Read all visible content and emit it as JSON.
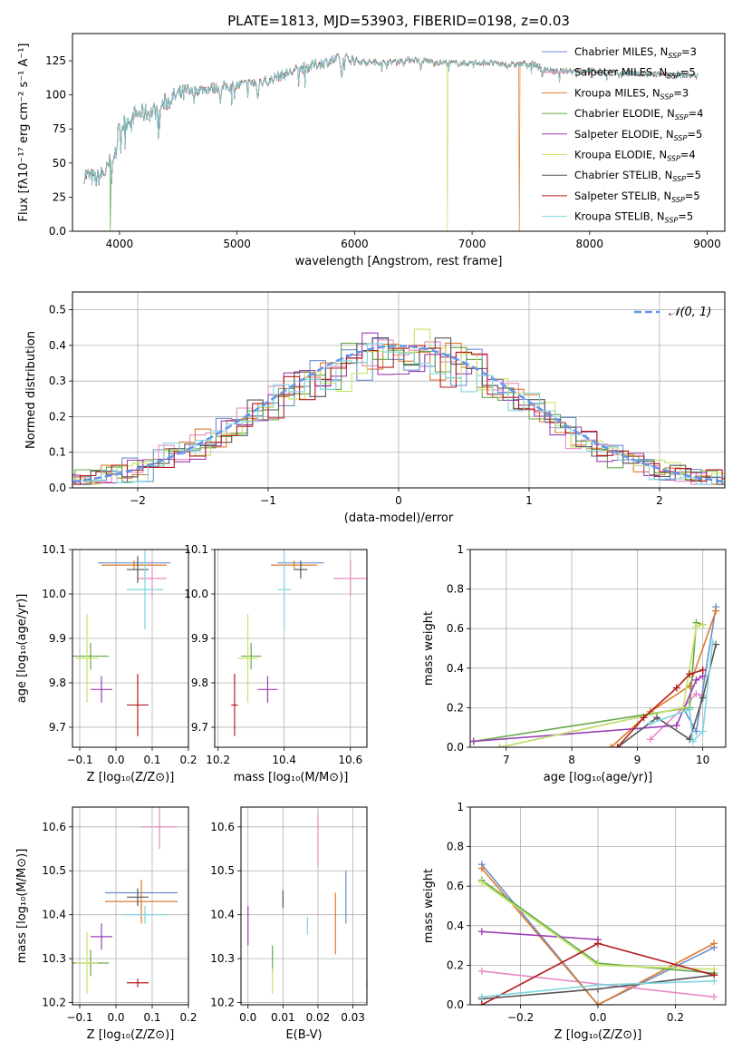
{
  "figure": {
    "title": "PLATE=1813, MJD=53903, FIBERID=0198, z=0.03"
  },
  "series_colors": [
    "#6a8fcf",
    "#e78ac3",
    "#de7a2c",
    "#63a84a",
    "#9b3fb5",
    "#c8e26a",
    "#555555",
    "#b51c1c",
    "#7fd6e0"
  ],
  "chart_data": [
    {
      "id": "spectrum",
      "type": "line",
      "title": "PLATE=1813, MJD=53903, FIBERID=0198, z=0.03",
      "xlabel": "wavelength [Angstrom, rest frame]",
      "ylabel": "Flux [fλ10⁻¹⁷ erg cm⁻² s⁻¹ A⁻¹]",
      "xlim": [
        3600,
        9150
      ],
      "ylim": [
        0,
        145
      ],
      "xticks": [
        4000,
        5000,
        6000,
        7000,
        8000,
        9000
      ],
      "yticks": [
        0,
        25,
        50,
        75,
        100,
        125
      ],
      "grid": false,
      "legend_position": "top-right",
      "legend": [
        "Chabrier MILES, NSSP=3",
        "Salpeter MILES, NSSP=5",
        "Kroupa MILES, NSSP=3",
        "Chabrier ELODIE, NSSP=4",
        "Salpeter ELODIE, NSSP=5",
        "Kroupa ELODIE, NSSP=4",
        "Chabrier STELIB, NSSP=5",
        "Salpeter STELIB, NSSP=5",
        "Kroupa STELIB, NSSP=5"
      ],
      "continuum": [
        [
          3700,
          42
        ],
        [
          3800,
          38
        ],
        [
          3900,
          45
        ],
        [
          4000,
          75
        ],
        [
          4100,
          85
        ],
        [
          4300,
          88
        ],
        [
          4400,
          95
        ],
        [
          4500,
          100
        ],
        [
          4700,
          104
        ],
        [
          4900,
          106
        ],
        [
          5100,
          108
        ],
        [
          5300,
          112
        ],
        [
          5500,
          118
        ],
        [
          5700,
          123
        ],
        [
          5900,
          127
        ],
        [
          6100,
          124
        ],
        [
          6300,
          124
        ],
        [
          6500,
          126
        ],
        [
          6700,
          124
        ],
        [
          6900,
          123
        ],
        [
          7100,
          124
        ],
        [
          7300,
          122
        ],
        [
          7500,
          123
        ],
        [
          7700,
          117
        ],
        [
          7900,
          118
        ],
        [
          8100,
          117
        ],
        [
          8300,
          116
        ],
        [
          8500,
          115
        ],
        [
          8700,
          115
        ],
        [
          8900,
          114
        ]
      ],
      "dropouts": [
        {
          "x": 3920,
          "series": 3
        },
        {
          "x": 6790,
          "series": 5
        },
        {
          "x": 7400,
          "series": 2
        }
      ]
    },
    {
      "id": "residuals",
      "type": "step",
      "xlabel": "(data-model)/error",
      "ylabel": "Normed distribution",
      "xlim": [
        -2.5,
        2.5
      ],
      "ylim": [
        0,
        0.55
      ],
      "xticks": [
        -2,
        -1,
        0,
        1,
        2
      ],
      "yticks": [
        0.0,
        0.1,
        0.2,
        0.3,
        0.4,
        0.5
      ],
      "grid": true,
      "legend_position": "top-right",
      "reference_curve": {
        "label": "𝒩(0, 1)",
        "mean": 0,
        "sigma": 1
      }
    },
    {
      "id": "age-vs-Z",
      "type": "errorbar",
      "xlabel": "Z [log₁₀(Z/Z⊙)]",
      "ylabel": "age  [log₁₀(age/yr)]",
      "xlim": [
        -0.12,
        0.2
      ],
      "ylim": [
        9.655,
        10.1
      ],
      "xticks": [
        -0.1,
        0.0,
        0.1,
        0.2
      ],
      "yticks": [
        9.7,
        9.8,
        9.9,
        10.0,
        10.1
      ],
      "grid": true,
      "points": [
        {
          "x": 0.05,
          "y": 10.07,
          "xerr": 0.1,
          "yerr": 0.0,
          "c": 0
        },
        {
          "x": 0.1,
          "y": 10.035,
          "xerr": 0.04,
          "yerr": 0.04,
          "c": 1
        },
        {
          "x": 0.05,
          "y": 10.065,
          "xerr": 0.09,
          "yerr": 0.01,
          "c": 2
        },
        {
          "x": -0.07,
          "y": 9.86,
          "xerr": 0.05,
          "yerr": 0.03,
          "c": 3
        },
        {
          "x": -0.04,
          "y": 9.785,
          "xerr": 0.03,
          "yerr": 0.03,
          "c": 4
        },
        {
          "x": -0.08,
          "y": 9.855,
          "xerr": 0.03,
          "yerr": 0.1,
          "c": 5
        },
        {
          "x": 0.06,
          "y": 10.055,
          "xerr": 0.03,
          "yerr": 0.03,
          "c": 6
        },
        {
          "x": 0.06,
          "y": 9.75,
          "xerr": 0.03,
          "yerr": 0.07,
          "c": 7
        },
        {
          "x": 0.08,
          "y": 10.01,
          "xerr": 0.05,
          "yerr": 0.09,
          "c": 8
        }
      ]
    },
    {
      "id": "age-vs-mass",
      "type": "errorbar",
      "xlabel": "mass [log₁₀(M/M⊙)]",
      "ylabel": "",
      "xlim": [
        10.19,
        10.65
      ],
      "ylim": [
        9.655,
        10.1
      ],
      "xticks": [
        10.2,
        10.4,
        10.6
      ],
      "yticks": [
        9.7,
        9.8,
        9.9,
        10.0,
        10.1
      ],
      "grid": true,
      "points": [
        {
          "x": 10.45,
          "y": 10.07,
          "xerr": 0.07,
          "yerr": 0.0,
          "c": 0
        },
        {
          "x": 10.6,
          "y": 10.035,
          "xerr": 0.05,
          "yerr": 0.04,
          "c": 1
        },
        {
          "x": 10.43,
          "y": 10.065,
          "xerr": 0.07,
          "yerr": 0.01,
          "c": 2
        },
        {
          "x": 10.3,
          "y": 9.86,
          "xerr": 0.03,
          "yerr": 0.03,
          "c": 3
        },
        {
          "x": 10.35,
          "y": 9.785,
          "xerr": 0.03,
          "yerr": 0.03,
          "c": 4
        },
        {
          "x": 10.29,
          "y": 9.855,
          "xerr": 0.03,
          "yerr": 0.1,
          "c": 5
        },
        {
          "x": 10.45,
          "y": 10.055,
          "xerr": 0.02,
          "yerr": 0.02,
          "c": 6
        },
        {
          "x": 10.25,
          "y": 9.75,
          "xerr": 0.01,
          "yerr": 0.07,
          "c": 7
        },
        {
          "x": 10.4,
          "y": 10.01,
          "xerr": 0.02,
          "yerr": 0.09,
          "c": 8
        }
      ]
    },
    {
      "id": "mass-vs-Z",
      "type": "errorbar",
      "xlabel": "Z [log₁₀(Z/Z⊙)]",
      "ylabel": "mass [log₁₀(M/M⊙)]",
      "xlim": [
        -0.12,
        0.2
      ],
      "ylim": [
        10.195,
        10.645
      ],
      "xticks": [
        -0.1,
        0.0,
        0.1,
        0.2
      ],
      "yticks": [
        10.2,
        10.3,
        10.4,
        10.5,
        10.6
      ],
      "grid": true,
      "points": [
        {
          "x": 0.07,
          "y": 10.45,
          "xerr": 0.1,
          "yerr": 0.0,
          "c": 0
        },
        {
          "x": 0.12,
          "y": 10.6,
          "xerr": 0.05,
          "yerr": 0.05,
          "c": 1
        },
        {
          "x": 0.07,
          "y": 10.43,
          "xerr": 0.1,
          "yerr": 0.05,
          "c": 2
        },
        {
          "x": -0.07,
          "y": 10.29,
          "xerr": 0.05,
          "yerr": 0.03,
          "c": 3
        },
        {
          "x": -0.04,
          "y": 10.35,
          "xerr": 0.03,
          "yerr": 0.03,
          "c": 4
        },
        {
          "x": -0.08,
          "y": 10.29,
          "xerr": 0.03,
          "yerr": 0.07,
          "c": 5
        },
        {
          "x": 0.06,
          "y": 10.44,
          "xerr": 0.03,
          "yerr": 0.02,
          "c": 6
        },
        {
          "x": 0.06,
          "y": 10.245,
          "xerr": 0.03,
          "yerr": 0.01,
          "c": 7
        },
        {
          "x": 0.08,
          "y": 10.4,
          "xerr": 0.06,
          "yerr": 0.02,
          "c": 8
        }
      ]
    },
    {
      "id": "mass-vs-EBV",
      "type": "errorbar",
      "xlabel": "E(B-V)",
      "ylabel": "",
      "xlim": [
        -0.002,
        0.034
      ],
      "ylim": [
        10.195,
        10.645
      ],
      "xticks": [
        0.0,
        0.01,
        0.02,
        0.03
      ],
      "yticks": [
        10.2,
        10.3,
        10.4,
        10.5,
        10.6
      ],
      "grid": true,
      "points": [
        {
          "x": 0.028,
          "y": 10.44,
          "xerr": 0,
          "yerr": 0.06,
          "c": 0
        },
        {
          "x": 0.02,
          "y": 10.57,
          "xerr": 0,
          "yerr": 0.06,
          "c": 1
        },
        {
          "x": 0.025,
          "y": 10.38,
          "xerr": 0,
          "yerr": 0.07,
          "c": 2
        },
        {
          "x": 0.007,
          "y": 10.3,
          "xerr": 0,
          "yerr": 0.03,
          "c": 3
        },
        {
          "x": 0.0,
          "y": 10.375,
          "xerr": 0,
          "yerr": 0.045,
          "c": 4
        },
        {
          "x": 0.007,
          "y": 10.25,
          "xerr": 0,
          "yerr": 0.03,
          "c": 5
        },
        {
          "x": 0.01,
          "y": 10.435,
          "xerr": 0,
          "yerr": 0.02,
          "c": 6
        },
        {
          "x": 0.034,
          "y": 10.245,
          "xerr": 0,
          "yerr": 0.01,
          "c": 7
        },
        {
          "x": 0.017,
          "y": 10.375,
          "xerr": 0,
          "yerr": 0.02,
          "c": 8
        }
      ]
    },
    {
      "id": "weight-vs-age",
      "type": "line",
      "xlabel": "age  [log₁₀(age/yr)]",
      "ylabel": "mass weight",
      "xlim": [
        6.45,
        10.35
      ],
      "ylim": [
        0,
        1
      ],
      "xticks": [
        7,
        8,
        9,
        10
      ],
      "yticks": [
        0.0,
        0.2,
        0.4,
        0.6,
        0.8,
        1.0
      ],
      "grid": true,
      "series": [
        {
          "c": 0,
          "x": [
            6.9,
            9.7,
            9.9,
            10.2
          ],
          "y": [
            0.0,
            0.2,
            0.08,
            0.71
          ]
        },
        {
          "c": 1,
          "x": [
            9.2,
            9.7,
            9.9,
            10.0
          ],
          "y": [
            0.04,
            0.2,
            0.27,
            0.26
          ]
        },
        {
          "c": 2,
          "x": [
            8.6,
            9.2,
            9.8,
            10.2
          ],
          "y": [
            0.0,
            0.18,
            0.31,
            0.69
          ]
        },
        {
          "c": 3,
          "x": [
            6.5,
            9.8,
            9.9,
            10.0
          ],
          "y": [
            0.03,
            0.2,
            0.63,
            0.62
          ]
        },
        {
          "c": 4,
          "x": [
            6.5,
            9.6,
            9.9,
            10.0
          ],
          "y": [
            0.03,
            0.11,
            0.34,
            0.36
          ]
        },
        {
          "c": 5,
          "x": [
            6.9,
            9.7,
            9.9,
            10.0
          ],
          "y": [
            0.0,
            0.2,
            0.61,
            0.62
          ]
        },
        {
          "c": 6,
          "x": [
            8.7,
            9.3,
            9.8,
            10.0,
            10.2
          ],
          "y": [
            0.0,
            0.15,
            0.04,
            0.25,
            0.52
          ]
        },
        {
          "c": 7,
          "x": [
            8.7,
            9.1,
            9.6,
            9.8,
            10.0
          ],
          "y": [
            0.0,
            0.15,
            0.3,
            0.37,
            0.39
          ]
        },
        {
          "c": 8,
          "x": [
            9.2,
            9.8,
            9.85,
            10.0,
            10.15
          ],
          "y": [
            0.12,
            0.19,
            0.03,
            0.08,
            0.53
          ]
        }
      ]
    },
    {
      "id": "weight-vs-Z",
      "type": "line",
      "xlabel": "Z [log₁₀(Z/Z⊙)]",
      "ylabel": "mass weight",
      "xlim": [
        -0.33,
        0.33
      ],
      "ylim": [
        0,
        1
      ],
      "xticks": [
        -0.2,
        0.0,
        0.2
      ],
      "yticks": [
        0.0,
        0.2,
        0.4,
        0.6,
        0.8,
        1.0
      ],
      "grid": true,
      "series": [
        {
          "c": 0,
          "x": [
            -0.3,
            0.0,
            0.3
          ],
          "y": [
            0.71,
            0.0,
            0.29
          ]
        },
        {
          "c": 1,
          "x": [
            -0.3,
            0.3
          ],
          "y": [
            0.17,
            0.04
          ]
        },
        {
          "c": 2,
          "x": [
            -0.3,
            0.0,
            0.3
          ],
          "y": [
            0.69,
            0.0,
            0.31
          ]
        },
        {
          "c": 3,
          "x": [
            -0.3,
            0.0,
            0.3
          ],
          "y": [
            0.63,
            0.21,
            0.16
          ]
        },
        {
          "c": 4,
          "x": [
            -0.3,
            0.0
          ],
          "y": [
            0.37,
            0.33
          ]
        },
        {
          "c": 5,
          "x": [
            -0.3,
            0.0,
            0.3
          ],
          "y": [
            0.62,
            0.2,
            0.18
          ]
        },
        {
          "c": 6,
          "x": [
            -0.3,
            0.0,
            0.3
          ],
          "y": [
            0.03,
            0.08,
            0.15
          ]
        },
        {
          "c": 7,
          "x": [
            -0.3,
            0.0,
            0.3
          ],
          "y": [
            0.0,
            0.31,
            0.15
          ]
        },
        {
          "c": 8,
          "x": [
            -0.3,
            0.0,
            0.3
          ],
          "y": [
            0.04,
            0.1,
            0.12
          ]
        }
      ]
    }
  ]
}
